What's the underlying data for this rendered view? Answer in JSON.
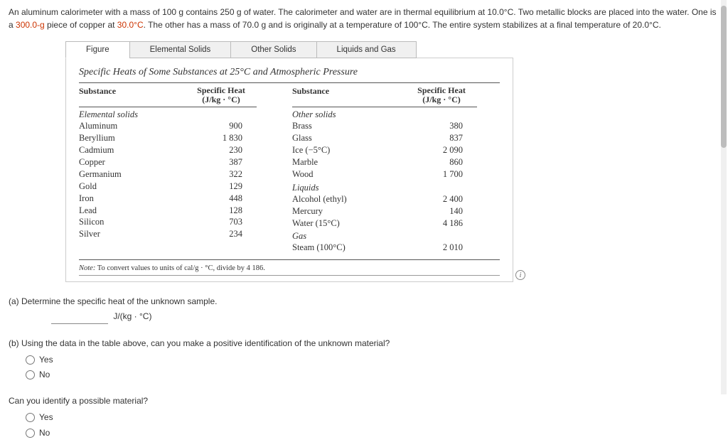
{
  "problem": {
    "line1a": "An aluminum calorimeter with a mass of 100 g contains 250 g of water. The calorimeter and water are in thermal equilibrium at 10.0°C. Two metallic blocks are placed into the water. One is a ",
    "mass1": "300.0-g",
    "line1b": " piece of copper at ",
    "temp1": "30.0°C",
    "line1c": ". The other has a mass of 70.0 g and is originally at a temperature of 100°C. The entire system stabilizes at a final temperature of 20.0°C."
  },
  "tabs": {
    "figure": "Figure",
    "elemental": "Elemental Solids",
    "other": "Other Solids",
    "liquids": "Liquids and Gas"
  },
  "panel": {
    "title": "Specific Heats of Some Substances at 25°C and Atmospheric Pressure",
    "header_substance": "Substance",
    "header_heat_l1": "Specific Heat",
    "header_heat_l2": "(J/kg · °C)",
    "left": {
      "cat": "Elemental solids",
      "rows": [
        {
          "n": "Aluminum",
          "v": "900"
        },
        {
          "n": "Beryllium",
          "v": "1 830"
        },
        {
          "n": "Cadmium",
          "v": "230"
        },
        {
          "n": "Copper",
          "v": "387"
        },
        {
          "n": "Germanium",
          "v": "322"
        },
        {
          "n": "Gold",
          "v": "129"
        },
        {
          "n": "Iron",
          "v": "448"
        },
        {
          "n": "Lead",
          "v": "128"
        },
        {
          "n": "Silicon",
          "v": "703"
        },
        {
          "n": "Silver",
          "v": "234"
        }
      ]
    },
    "right": {
      "cat1": "Other solids",
      "rows1": [
        {
          "n": "Brass",
          "v": "380"
        },
        {
          "n": "Glass",
          "v": "837"
        },
        {
          "n": "Ice (−5°C)",
          "v": "2 090"
        },
        {
          "n": "Marble",
          "v": "860"
        },
        {
          "n": "Wood",
          "v": "1 700"
        }
      ],
      "cat2": "Liquids",
      "rows2": [
        {
          "n": "Alcohol (ethyl)",
          "v": "2 400"
        },
        {
          "n": "Mercury",
          "v": "140"
        },
        {
          "n": "Water (15°C)",
          "v": "4 186"
        }
      ],
      "cat3": "Gas",
      "rows3": [
        {
          "n": "Steam (100°C)",
          "v": "2 010"
        }
      ]
    },
    "note_label": "Note:",
    "note_text": " To convert values to units of cal/g · °C, divide by 4 186."
  },
  "qa": {
    "a_text": "(a) Determine the specific heat of the unknown sample.",
    "a_unit": "J/(kg · °C)",
    "b_text": "(b) Using the data in the table above, can you make a positive identification of the unknown material?",
    "yes": "Yes",
    "no": "No",
    "c_text": "Can you identify a possible material?"
  },
  "icons": {
    "info": "i"
  }
}
